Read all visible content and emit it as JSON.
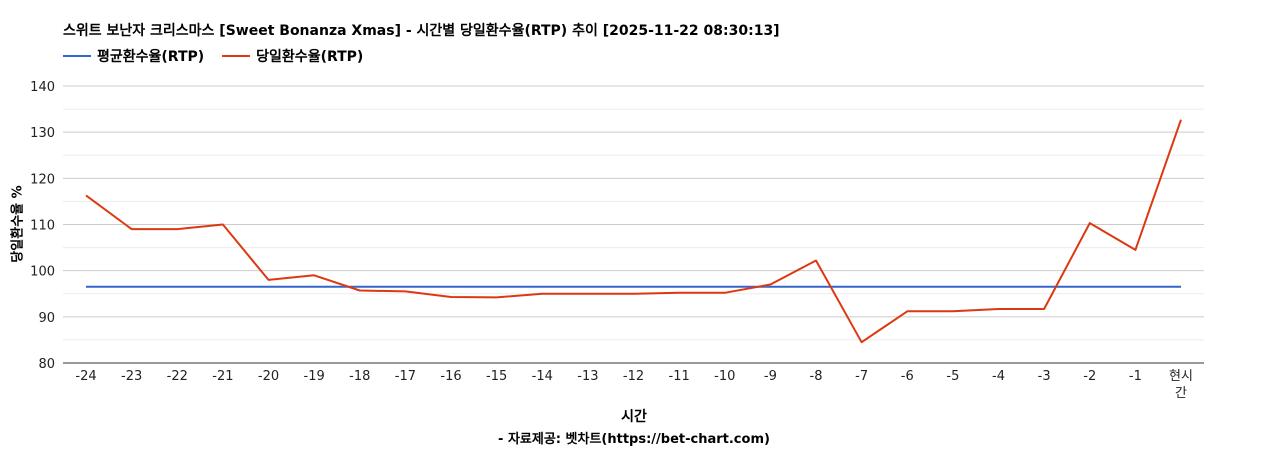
{
  "chart_data": {
    "type": "line",
    "title": "스위트 보난자 크리스마스 [Sweet Bonanza Xmas] - 시간별 당일환수율(RTP) 추이 [2025-11-22 08:30:13]",
    "xlabel": "시간",
    "ylabel": "당일환수율 %",
    "source": "- 자료제공: 벳차트(https://bet-chart.com)",
    "categories": [
      "-24",
      "-23",
      "-22",
      "-21",
      "-20",
      "-19",
      "-18",
      "-17",
      "-16",
      "-15",
      "-14",
      "-13",
      "-12",
      "-11",
      "-10",
      "-9",
      "-8",
      "-7",
      "-6",
      "-5",
      "-4",
      "-3",
      "-2",
      "-1",
      "현시간"
    ],
    "ylim": [
      80,
      140
    ],
    "yticks": [
      80,
      90,
      100,
      110,
      120,
      130,
      140
    ],
    "grid": true,
    "legend_position": "top-left",
    "series": [
      {
        "name": "평균환수율(RTP)",
        "color": "#3366cc",
        "values": [
          96.5,
          96.5,
          96.5,
          96.5,
          96.5,
          96.5,
          96.5,
          96.5,
          96.5,
          96.5,
          96.5,
          96.5,
          96.5,
          96.5,
          96.5,
          96.5,
          96.5,
          96.5,
          96.5,
          96.5,
          96.5,
          96.5,
          96.5,
          96.5,
          96.5
        ]
      },
      {
        "name": "당일환수율(RTP)",
        "color": "#dc3912",
        "values": [
          116.3,
          109.0,
          109.0,
          110.0,
          98.0,
          99.0,
          95.7,
          95.5,
          94.3,
          94.2,
          95.0,
          95.0,
          95.0,
          95.2,
          95.2,
          97.0,
          102.2,
          84.5,
          91.2,
          91.2,
          91.7,
          91.7,
          110.3,
          104.5,
          132.7
        ]
      }
    ]
  }
}
